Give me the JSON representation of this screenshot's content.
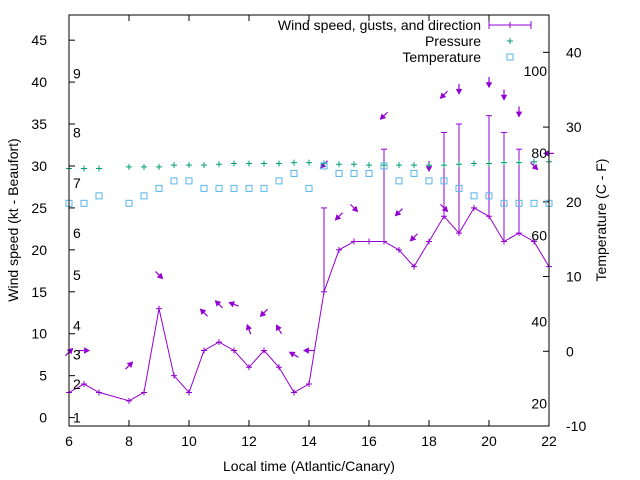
{
  "chart_data": {
    "type": "line",
    "xlabel": "Local time (Atlantic/Canary)",
    "ylabel": "Wind speed (kt - Beaufort)",
    "y2label": "Temperature (C - F)",
    "xlim": [
      6,
      22
    ],
    "ylim": [
      -1,
      48
    ],
    "y2lim": [
      -10,
      45
    ],
    "x_ticks": [
      "6",
      "8",
      "10",
      "12",
      "14",
      "16",
      "18",
      "20",
      "22"
    ],
    "y_ticks": [
      "0",
      "5",
      "10",
      "15",
      "20",
      "25",
      "30",
      "35",
      "40",
      "45"
    ],
    "y2_ticks": [
      "-10",
      "0",
      "10",
      "20",
      "30",
      "40"
    ],
    "beaufort_labels": [
      {
        "text": "1",
        "y": 0
      },
      {
        "text": "2",
        "y": 4
      },
      {
        "text": "3",
        "y": 7.5
      },
      {
        "text": "4",
        "y": 11
      },
      {
        "text": "5",
        "y": 17
      },
      {
        "text": "6",
        "y": 22
      },
      {
        "text": "7",
        "y": 28
      },
      {
        "text": "8",
        "y": 34
      },
      {
        "text": "9",
        "y": 41
      }
    ],
    "fahrenheit_labels": [
      {
        "text": "20",
        "t": -7
      },
      {
        "text": "40",
        "t": 4
      },
      {
        "text": "60",
        "t": 15.5
      },
      {
        "text": "80",
        "t": 26.5
      },
      {
        "text": "100",
        "t": 37.5
      }
    ],
    "legend": [
      "Wind speed, gusts, and direction",
      "Pressure",
      "Temperature"
    ],
    "legend_position": "top-right",
    "colors": {
      "wind": "#9400d3",
      "pressure": "#009e73",
      "temperature": "#56b4e9"
    },
    "series": [
      {
        "name": "Wind speed, gusts, and direction",
        "x": [
          6,
          6.5,
          7,
          8,
          8.5,
          9,
          9.5,
          10,
          10.5,
          11,
          11.5,
          12,
          12.5,
          13,
          13.5,
          14,
          14.5,
          15,
          15.5,
          16,
          16.5,
          17,
          17.5,
          18,
          18.5,
          19,
          19.5,
          20,
          20.5,
          21,
          21.5,
          22
        ],
        "values": [
          3,
          4,
          3,
          2,
          3,
          13,
          5,
          3,
          8,
          9,
          8,
          6,
          8,
          6,
          3,
          4,
          15,
          20,
          21,
          21,
          21,
          20,
          18,
          21,
          24,
          22,
          25,
          24,
          21,
          22,
          21,
          18
        ],
        "gusts": [
          {
            "x": 14.5,
            "low": 15,
            "high": 25
          },
          {
            "x": 16.5,
            "low": 21,
            "high": 32
          },
          {
            "x": 18.5,
            "low": 24,
            "high": 34
          },
          {
            "x": 19,
            "low": 22,
            "high": 35
          },
          {
            "x": 20,
            "low": 24,
            "high": 36
          },
          {
            "x": 20.5,
            "low": 21,
            "high": 34
          },
          {
            "x": 21,
            "low": 22,
            "high": 32
          }
        ],
        "direction_arrows": [
          {
            "x": 6,
            "y": 7.8,
            "deg": 45
          },
          {
            "x": 6.5,
            "y": 8,
            "deg": 0
          },
          {
            "x": 8,
            "y": 6.2,
            "deg": 45
          },
          {
            "x": 9,
            "y": 17,
            "deg": -45
          },
          {
            "x": 10.5,
            "y": 12.5,
            "deg": 135
          },
          {
            "x": 11,
            "y": 13.5,
            "deg": 135
          },
          {
            "x": 11.5,
            "y": 13.5,
            "deg": 160
          },
          {
            "x": 12,
            "y": 10.5,
            "deg": 110
          },
          {
            "x": 12.5,
            "y": 12.5,
            "deg": -135
          },
          {
            "x": 13,
            "y": 10.5,
            "deg": 120
          },
          {
            "x": 13.5,
            "y": 7.5,
            "deg": 150
          },
          {
            "x": 14,
            "y": 8,
            "deg": 180
          },
          {
            "x": 14.5,
            "y": 30.2,
            "deg": -135
          },
          {
            "x": 15,
            "y": 24,
            "deg": -135
          },
          {
            "x": 15.5,
            "y": 25,
            "deg": -45
          },
          {
            "x": 16.5,
            "y": 36,
            "deg": -135
          },
          {
            "x": 17,
            "y": 24.5,
            "deg": -135
          },
          {
            "x": 17.5,
            "y": 21.5,
            "deg": -135
          },
          {
            "x": 18,
            "y": 30,
            "deg": -90
          },
          {
            "x": 18.5,
            "y": 25,
            "deg": -45
          },
          {
            "x": 18.5,
            "y": 38.5,
            "deg": -135
          },
          {
            "x": 19,
            "y": 39.2,
            "deg": -90
          },
          {
            "x": 20,
            "y": 40,
            "deg": -90
          },
          {
            "x": 20.5,
            "y": 38.5,
            "deg": -90
          },
          {
            "x": 21,
            "y": 36.5,
            "deg": -90
          },
          {
            "x": 21.5,
            "y": 30,
            "deg": -45
          },
          {
            "x": 22,
            "y": 31.5,
            "deg": 180
          }
        ]
      },
      {
        "name": "Pressure",
        "x": [
          6,
          6.5,
          7,
          8,
          8.5,
          9,
          9.5,
          10,
          10.5,
          11,
          11.5,
          12,
          12.5,
          13,
          13.5,
          14,
          14.5,
          15,
          15.5,
          16,
          16.5,
          17,
          17.5,
          18,
          18.5,
          19,
          19.5,
          20,
          20.5,
          21,
          21.5,
          22
        ],
        "values": [
          29.7,
          29.7,
          29.7,
          29.9,
          29.9,
          29.9,
          30.1,
          30.1,
          30.1,
          30.2,
          30.3,
          30.3,
          30.3,
          30.3,
          30.4,
          30.4,
          30.3,
          30.2,
          30.2,
          30.1,
          30.1,
          30.1,
          30.1,
          30.1,
          30.1,
          30.2,
          30.3,
          30.3,
          30.4,
          30.4,
          30.5,
          30.5
        ]
      },
      {
        "name": "Temperature",
        "x": [
          6,
          6.5,
          7,
          8,
          8.5,
          9,
          9.5,
          10,
          10.5,
          11,
          11.5,
          12,
          12.5,
          13,
          13.5,
          14,
          14.5,
          15,
          15.5,
          16,
          16.5,
          17,
          17.5,
          18,
          18.5,
          19,
          19.5,
          20,
          20.5,
          21,
          21.5,
          22
        ],
        "values": [
          19.8,
          19.8,
          20.8,
          19.8,
          20.8,
          21.8,
          22.8,
          22.8,
          21.8,
          21.8,
          21.8,
          21.8,
          21.8,
          22.8,
          23.8,
          21.8,
          24.8,
          23.8,
          23.8,
          23.8,
          24.8,
          22.8,
          23.8,
          22.8,
          22.8,
          21.8,
          20.8,
          20.8,
          19.8,
          19.8,
          19.8,
          19.8
        ]
      }
    ]
  }
}
